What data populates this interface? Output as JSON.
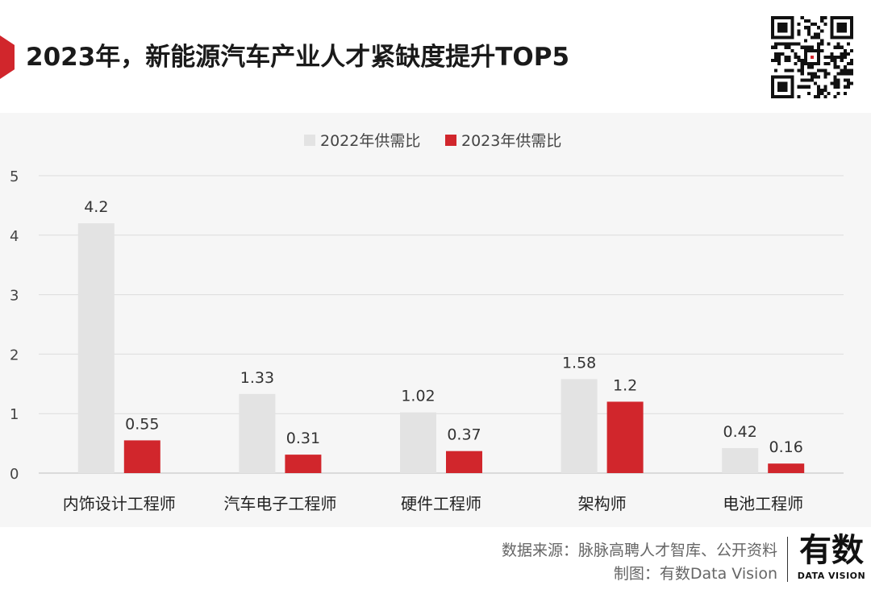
{
  "title": "2023年，新能源汽车产业人才紧缺度提升TOP5",
  "chart_data": {
    "type": "bar",
    "categories": [
      "内饰设计工程师",
      "汽车电子工程师",
      "硬件工程师",
      "架构师",
      "电池工程师"
    ],
    "series": [
      {
        "name": "2022年供需比",
        "color": "#e3e3e3",
        "values": [
          4.2,
          1.33,
          1.02,
          1.58,
          0.42
        ],
        "labels": [
          "4.2",
          "1.33",
          "1.02",
          "1.58",
          "0.42"
        ]
      },
      {
        "name": "2023年供需比",
        "color": "#d1262c",
        "values": [
          0.55,
          0.31,
          0.37,
          1.2,
          0.16
        ],
        "labels": [
          "0.55",
          "0.31",
          "0.37",
          "1.2",
          "0.16"
        ]
      }
    ],
    "ylim": [
      0,
      5
    ],
    "yticks": [
      0,
      1,
      2,
      3,
      4,
      5
    ],
    "grid": true,
    "legend_position": "top-center"
  },
  "footer": {
    "source": "数据来源：脉脉高聘人才智库、公开资料",
    "credit": "制图：有数Data Vision"
  },
  "logo": {
    "text": "有数",
    "subtext": "DATA VISION"
  },
  "colors": {
    "accent": "#d1262c",
    "panel": "#f6f6f6"
  }
}
